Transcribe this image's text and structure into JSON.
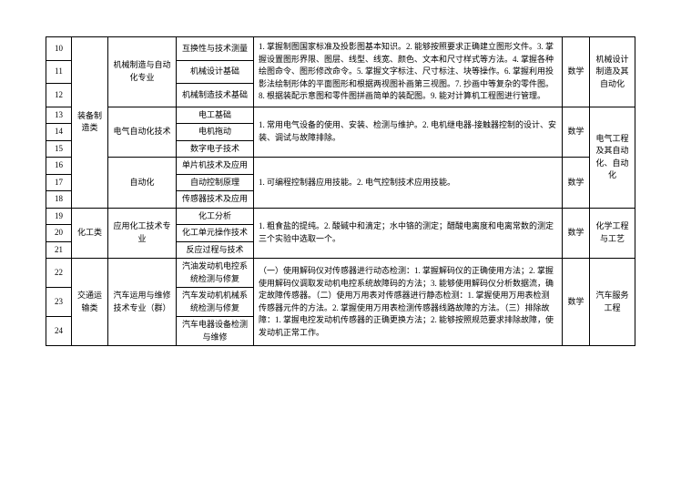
{
  "rows": {
    "r10": "10",
    "r11": "11",
    "r12": "12",
    "r13": "13",
    "r14": "14",
    "r15": "15",
    "r16": "16",
    "r17": "17",
    "r18": "18",
    "r19": "19",
    "r20": "20",
    "r21": "21",
    "r22": "22",
    "r23": "23",
    "r24": "24"
  },
  "cat": {
    "equip": "装备制造类",
    "chem": "化工类",
    "trans": "交通运输类"
  },
  "major": {
    "mech": "机械制造与自动化专业",
    "elec": "电气自动化技术",
    "auto": "自动化",
    "chem": "应用化工技术专业",
    "vehicle": "汽车运用与维修技术专业（群）"
  },
  "course": {
    "c10": "互换性与技术测量",
    "c11": "机械设计基础",
    "c12": "机械制造技术基础",
    "c13": "电工基础",
    "c14": "电机拖动",
    "c15": "数字电子技术",
    "c16": "单片机技术及应用",
    "c17": "自动控制原理",
    "c18": "传感器技术及应用",
    "c19": "化工分析",
    "c20": "化工单元操作技术",
    "c21": "反应过程与技术",
    "c22": "汽油发动机电控系统检测与修复",
    "c23": "汽车发动机机械系统检测与修复",
    "c24": "汽车电器设备检测与维修"
  },
  "desc": {
    "d1": "1. 掌握制图国家标准及投影图基本知识。2. 能够按照要求正确建立图形文件。3. 掌握设置图形界限、图层、线型、线宽、颜色、文本和尺寸样式等方法。4. 掌握各种绘图命令、图形修改命令。5. 掌握文字标注、尺寸标注、块等操作。6. 掌握利用投影法绘制形体的平面图形和根据两视图补画第三视图。7. 抄画中等复杂的零件图。8. 根据装配示意图和零件图拼画简单的装配图。9. 能对计算机工程图进行管理。",
    "d2": "1. 常用电气设备的使用、安装、检测与维护。2. 电机继电器-接触器控制的设计、安装、调试与故障排除。",
    "d3": "1. 可编程控制器应用技能。2. 电气控制技术应用技能。",
    "d4": "1. 粗食盐的提纯。2. 酸碱中和滴定；水中铬的测定；醋酸电离度和电离常数的测定三个实验中选取一个。",
    "d5": "（一）使用解码仪对传感器进行动态检测：1. 掌握解码仪的正确使用方法；2. 掌握使用解码仪调取发动机电控系统故障码的方法；3. 能够使用解码仪分析数据流，确定故障传感器。（二）使用万用表对传感器进行静态检测：1. 掌握使用万用表检测传感器元件的方法。2. 掌握使用万用表检测传感器线路故障的方法。（三）排除故障：1. 掌握电控发动机传感器的正确更换方法；2. 能够按照规范要求排除故障，使发动机正常工作。"
  },
  "math": "数学",
  "target": {
    "t1": "机械设计制造及其自动化",
    "t2": "电气工程及其自动化、自动化",
    "t3": "化学工程与工艺",
    "t4": "汽车服务工程"
  }
}
